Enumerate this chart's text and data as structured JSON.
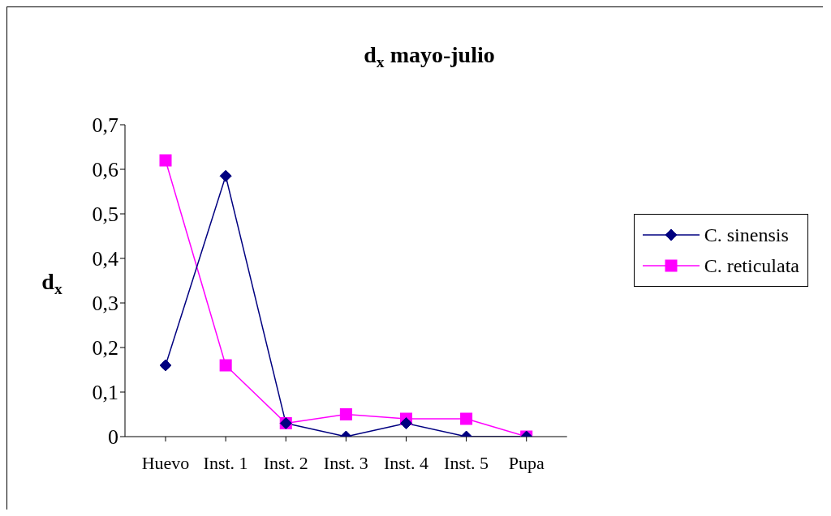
{
  "chart_data": {
    "type": "line",
    "title": "d$_{x}$ mayo-julio",
    "ylabel": "d$_{x}$",
    "categories": [
      "Huevo",
      "Inst. 1",
      "Inst. 2",
      "Inst. 3",
      "Inst. 4",
      "Inst. 5",
      "Pupa"
    ],
    "series": [
      {
        "name": "C. sinensis",
        "color": "#000080",
        "marker": "diamond",
        "values": [
          0.16,
          0.585,
          0.03,
          0,
          0.03,
          0,
          0
        ]
      },
      {
        "name": "C. reticulata",
        "color": "#ff00ff",
        "marker": "square",
        "values": [
          0.62,
          0.16,
          0.03,
          0.05,
          0.04,
          0.04,
          0
        ]
      }
    ],
    "ylim": [
      0,
      0.7
    ],
    "yticks": [
      0,
      {
        "value": 0.1,
        "label": "0,1"
      },
      {
        "value": 0.2,
        "label": "0,2"
      },
      {
        "value": 0.3,
        "label": "0,3"
      },
      {
        "value": 0.4,
        "label": "0,4"
      },
      {
        "value": 0.5,
        "label": "0,5"
      },
      {
        "value": 0.6,
        "label": "0,6"
      },
      {
        "value": 0.7,
        "label": "0,7"
      }
    ],
    "legend": "right",
    "line_style": "solid"
  }
}
